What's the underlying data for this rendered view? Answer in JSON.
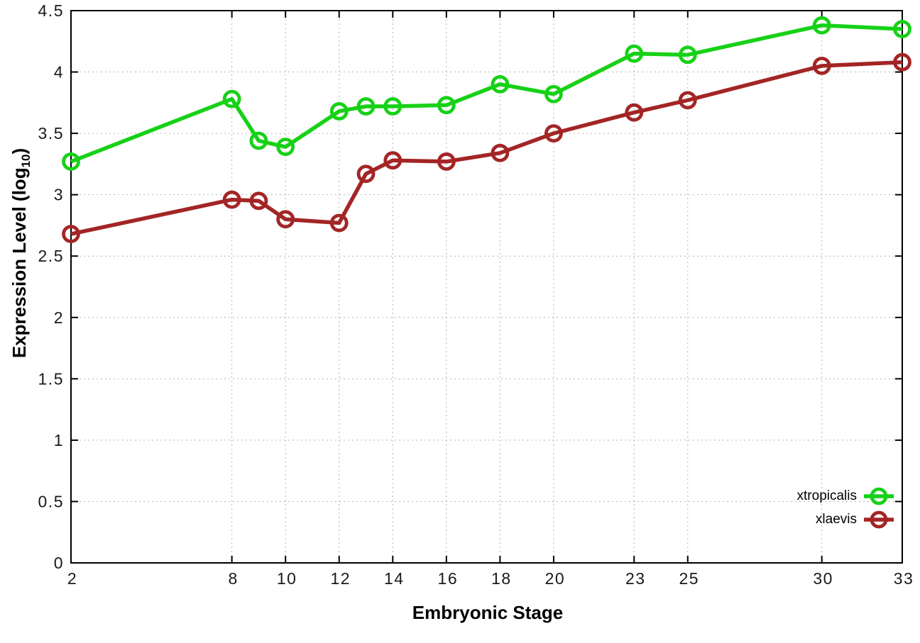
{
  "chart_data": {
    "type": "line",
    "title": "",
    "xlabel": "Embryonic Stage",
    "ylabel": {
      "main": "Expression Level (log",
      "sub": "10",
      "close": ")"
    },
    "x": [
      2,
      8,
      9,
      10,
      12,
      13,
      14,
      16,
      18,
      20,
      23,
      25,
      30,
      33
    ],
    "series": [
      {
        "name": "xtropicalis",
        "color": "#17d117",
        "values": [
          3.27,
          3.78,
          3.44,
          3.39,
          3.68,
          3.72,
          3.72,
          3.73,
          3.9,
          3.82,
          4.15,
          4.14,
          4.38,
          4.35
        ]
      },
      {
        "name": "xlaevis",
        "color": "#a32525",
        "values": [
          2.68,
          2.96,
          2.95,
          2.8,
          2.77,
          3.17,
          3.28,
          3.27,
          3.34,
          3.5,
          3.67,
          3.77,
          4.05,
          4.08
        ]
      }
    ],
    "xticks": [
      "2",
      "8",
      "10",
      "12",
      "14",
      "16",
      "18",
      "20",
      "23",
      "25",
      "30",
      "33"
    ],
    "yticks": [
      "0",
      "0.5",
      "1",
      "1.5",
      "2",
      "2.5",
      "3",
      "3.5",
      "4",
      "4.5"
    ],
    "xlim": [
      2,
      33
    ],
    "ylim": [
      0,
      4.5
    ],
    "grid": true,
    "legend_position": "bottom-right",
    "styles": {
      "grid_color": "#b3b3b3",
      "axis_color": "#000000",
      "tick_label_color": "#1a1a1a",
      "background": "#ffffff"
    }
  }
}
